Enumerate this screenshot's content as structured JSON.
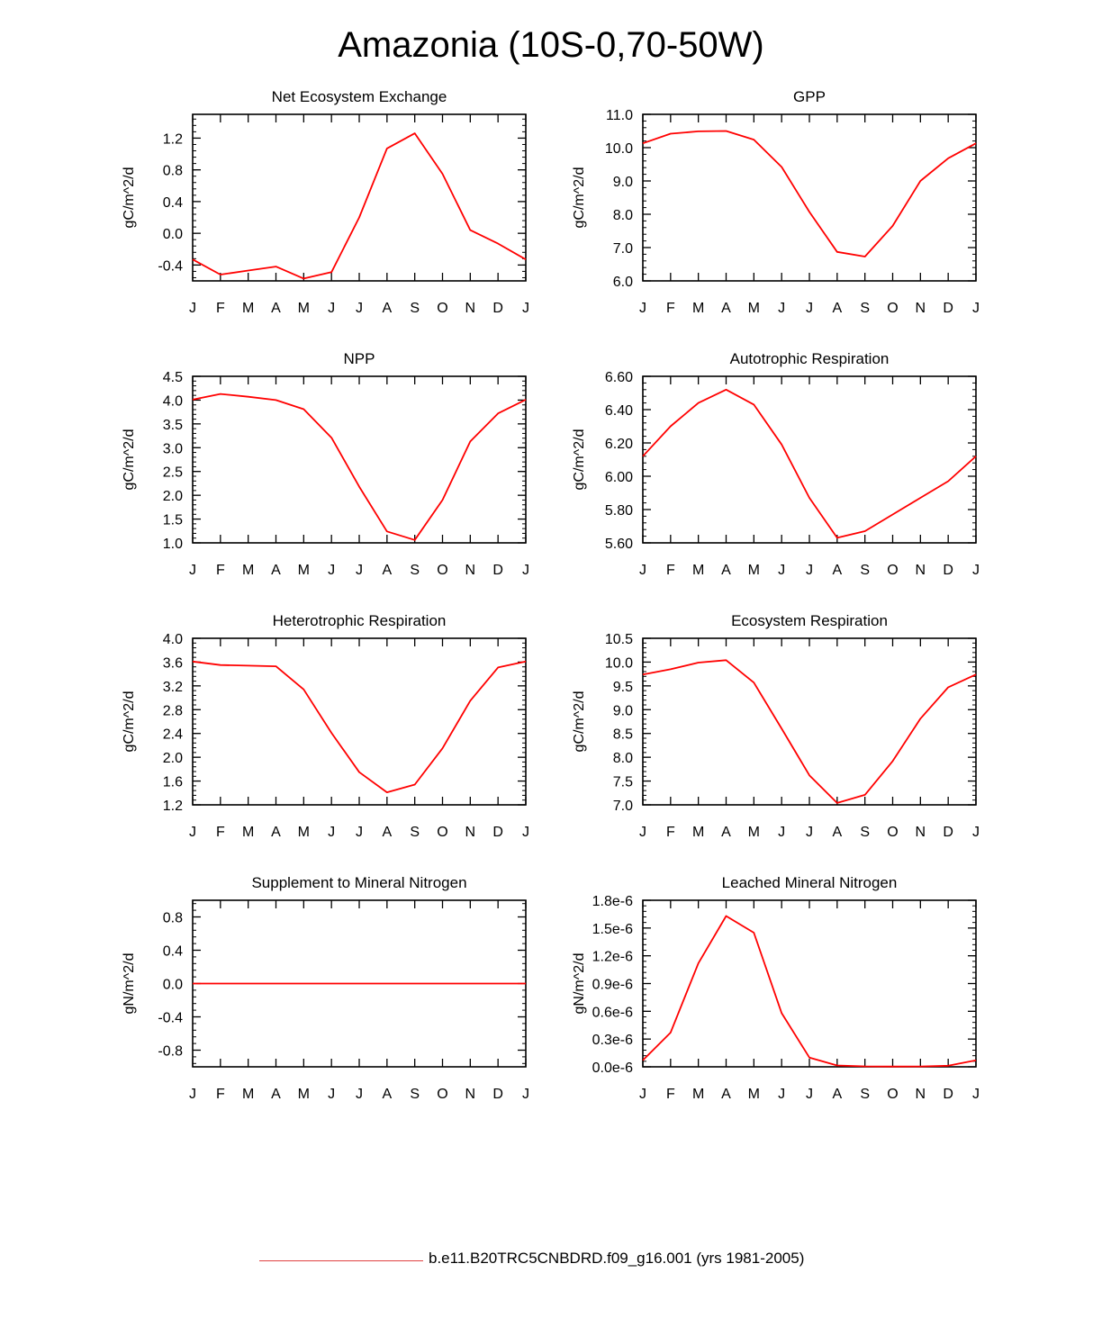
{
  "title": "Amazonia (10S-0,70-50W)",
  "legend": {
    "label": "b.e11.B20TRC5CNBDRD.f09_g16.001 (yrs 1981-2005)",
    "color": "#e04040"
  },
  "line_color": "#ff0000",
  "chart_data": [
    {
      "type": "line",
      "title": "Net Ecosystem Exchange",
      "ylabel": "gC/m^2/d",
      "categories": [
        "J",
        "F",
        "M",
        "A",
        "M",
        "J",
        "J",
        "A",
        "S",
        "O",
        "N",
        "D",
        "J"
      ],
      "ylim": [
        -0.6,
        1.5
      ],
      "yticks": [
        -0.4,
        0.0,
        0.4,
        0.8,
        1.2
      ],
      "ytick_labels": [
        "-0.4",
        "0.0",
        "0.4",
        "0.8",
        "1.2"
      ],
      "values": [
        -0.33,
        -0.52,
        -0.47,
        -0.42,
        -0.57,
        -0.49,
        0.2,
        1.07,
        1.26,
        0.75,
        0.04,
        -0.13,
        -0.33
      ]
    },
    {
      "type": "line",
      "title": "GPP",
      "ylabel": "gC/m^2/d",
      "categories": [
        "J",
        "F",
        "M",
        "A",
        "M",
        "J",
        "J",
        "A",
        "S",
        "O",
        "N",
        "D",
        "J"
      ],
      "ylim": [
        6.0,
        11.0
      ],
      "yticks": [
        6.0,
        7.0,
        8.0,
        9.0,
        10.0,
        11.0
      ],
      "ytick_labels": [
        "6.0",
        "7.0",
        "8.0",
        "9.0",
        "10.0",
        "11.0"
      ],
      "values": [
        10.13,
        10.42,
        10.49,
        10.5,
        10.24,
        9.42,
        8.07,
        6.87,
        6.73,
        7.65,
        9.0,
        9.68,
        10.13
      ]
    },
    {
      "type": "line",
      "title": "NPP",
      "ylabel": "gC/m^2/d",
      "categories": [
        "J",
        "F",
        "M",
        "A",
        "M",
        "J",
        "J",
        "A",
        "S",
        "O",
        "N",
        "D",
        "J"
      ],
      "ylim": [
        1.0,
        4.5
      ],
      "yticks": [
        1.0,
        1.5,
        2.0,
        2.5,
        3.0,
        3.5,
        4.0,
        4.5
      ],
      "ytick_labels": [
        "1.0",
        "1.5",
        "2.0",
        "2.5",
        "3.0",
        "3.5",
        "4.0",
        "4.5"
      ],
      "values": [
        4.01,
        4.13,
        4.07,
        4.0,
        3.81,
        3.21,
        2.18,
        1.24,
        1.06,
        1.9,
        3.13,
        3.72,
        4.01
      ]
    },
    {
      "type": "line",
      "title": "Autotrophic Respiration",
      "ylabel": "gC/m^2/d",
      "categories": [
        "J",
        "F",
        "M",
        "A",
        "M",
        "J",
        "J",
        "A",
        "S",
        "O",
        "N",
        "D",
        "J"
      ],
      "ylim": [
        5.6,
        6.6
      ],
      "yticks": [
        5.6,
        5.8,
        6.0,
        6.2,
        6.4,
        6.6
      ],
      "ytick_labels": [
        "5.60",
        "5.80",
        "6.00",
        "6.20",
        "6.40",
        "6.60"
      ],
      "values": [
        6.12,
        6.3,
        6.44,
        6.52,
        6.43,
        6.19,
        5.87,
        5.63,
        5.67,
        5.77,
        5.87,
        5.97,
        6.12
      ]
    },
    {
      "type": "line",
      "title": "Heterotrophic Respiration",
      "ylabel": "gC/m^2/d",
      "categories": [
        "J",
        "F",
        "M",
        "A",
        "M",
        "J",
        "J",
        "A",
        "S",
        "O",
        "N",
        "D",
        "J"
      ],
      "ylim": [
        1.2,
        4.0
      ],
      "yticks": [
        1.2,
        1.6,
        2.0,
        2.4,
        2.8,
        3.2,
        3.6,
        4.0
      ],
      "ytick_labels": [
        "1.2",
        "1.6",
        "2.0",
        "2.4",
        "2.8",
        "3.2",
        "3.6",
        "4.0"
      ],
      "values": [
        3.61,
        3.55,
        3.54,
        3.53,
        3.14,
        2.41,
        1.75,
        1.41,
        1.54,
        2.15,
        2.95,
        3.51,
        3.61
      ]
    },
    {
      "type": "line",
      "title": "Ecosystem Respiration",
      "ylabel": "gC/m^2/d",
      "categories": [
        "J",
        "F",
        "M",
        "A",
        "M",
        "J",
        "J",
        "A",
        "S",
        "O",
        "N",
        "D",
        "J"
      ],
      "ylim": [
        7.0,
        10.5
      ],
      "yticks": [
        7.0,
        7.5,
        8.0,
        8.5,
        9.0,
        9.5,
        10.0,
        10.5
      ],
      "ytick_labels": [
        "7.0",
        "7.5",
        "8.0",
        "8.5",
        "9.0",
        "9.5",
        "10.0",
        "10.5"
      ],
      "values": [
        9.74,
        9.85,
        9.99,
        10.04,
        9.57,
        8.6,
        7.62,
        7.04,
        7.21,
        7.92,
        8.81,
        9.47,
        9.74
      ]
    },
    {
      "type": "line",
      "title": "Supplement to Mineral Nitrogen",
      "ylabel": "gN/m^2/d",
      "categories": [
        "J",
        "F",
        "M",
        "A",
        "M",
        "J",
        "J",
        "A",
        "S",
        "O",
        "N",
        "D",
        "J"
      ],
      "ylim": [
        -1.0,
        1.0
      ],
      "yticks": [
        -0.8,
        -0.4,
        0.0,
        0.4,
        0.8
      ],
      "ytick_labels": [
        "-0.8",
        "-0.4",
        "0.0",
        "0.4",
        "0.8"
      ],
      "values": [
        0,
        0,
        0,
        0,
        0,
        0,
        0,
        0,
        0,
        0,
        0,
        0,
        0
      ]
    },
    {
      "type": "line",
      "title": "Leached Mineral Nitrogen",
      "ylabel": "gN/m^2/d",
      "categories": [
        "J",
        "F",
        "M",
        "A",
        "M",
        "J",
        "J",
        "A",
        "S",
        "O",
        "N",
        "D",
        "J"
      ],
      "ylim": [
        0.0,
        1.8e-06
      ],
      "yticks": [
        0.0,
        3e-07,
        6e-07,
        9e-07,
        1.2e-06,
        1.5e-06,
        1.8e-06
      ],
      "ytick_labels": [
        "0.0e-6",
        "0.3e-6",
        "0.6e-6",
        "0.9e-6",
        "1.2e-6",
        "1.5e-6",
        "1.8e-6"
      ],
      "values": [
        7e-08,
        3.7e-07,
        1.12e-06,
        1.63e-06,
        1.45e-06,
        5.8e-07,
        1e-07,
        1.5e-08,
        5e-09,
        3e-09,
        4e-09,
        1.2e-08,
        7e-08
      ]
    }
  ]
}
